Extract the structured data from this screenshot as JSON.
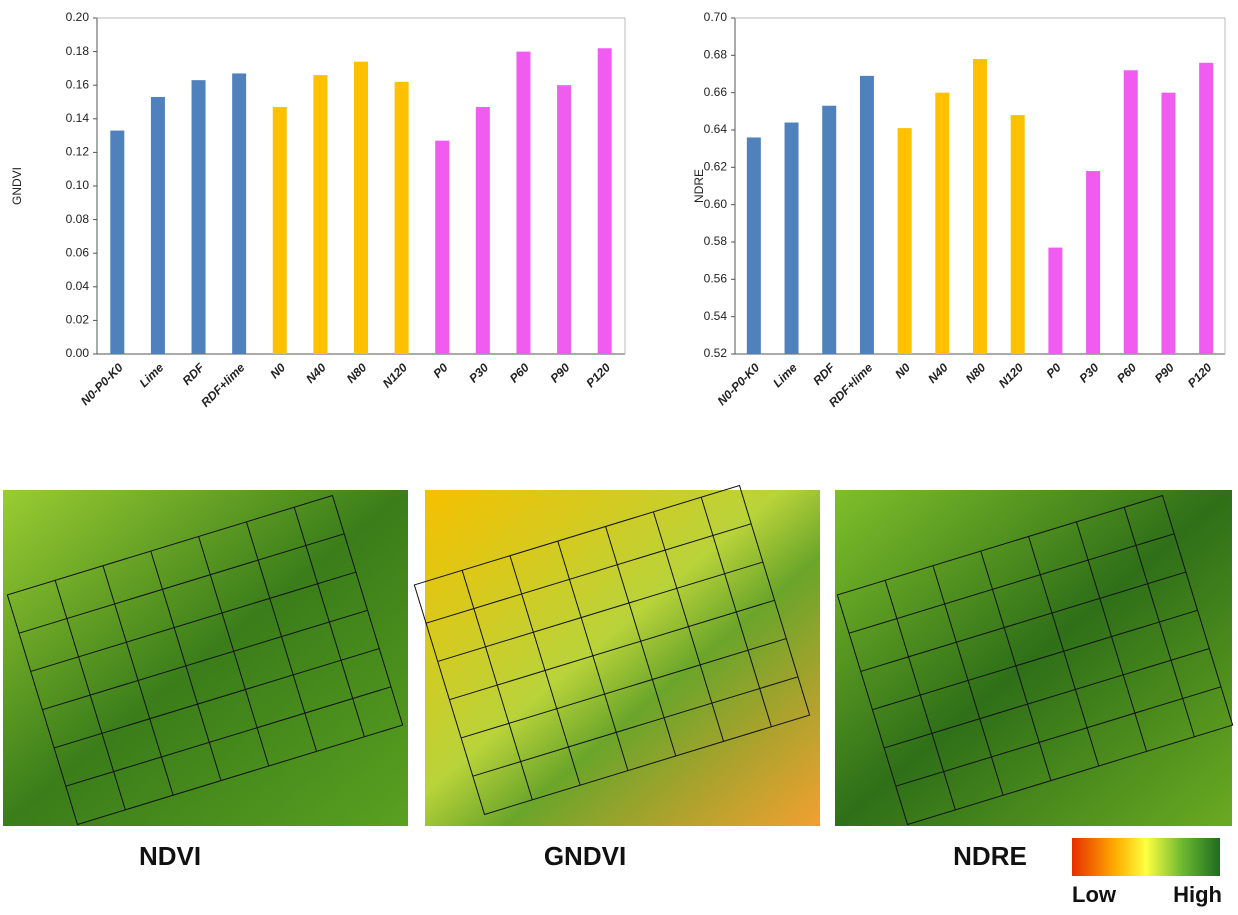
{
  "chart_data": [
    {
      "type": "bar",
      "ylabel": "GNDVI",
      "categories": [
        "N0-P0-K0",
        "Lime",
        "RDF",
        "RDF+lime",
        "N0",
        "N40",
        "N80",
        "N120",
        "P0",
        "P30",
        "P60",
        "P90",
        "P120"
      ],
      "values": [
        0.133,
        0.153,
        0.163,
        0.167,
        0.147,
        0.166,
        0.174,
        0.162,
        0.127,
        0.147,
        0.18,
        0.16,
        0.182
      ],
      "colors": [
        "#4f81bd",
        "#4f81bd",
        "#4f81bd",
        "#4f81bd",
        "#ffc000",
        "#ffc000",
        "#ffc000",
        "#ffc000",
        "#f05cf0",
        "#f05cf0",
        "#f05cf0",
        "#f05cf0",
        "#f05cf0"
      ],
      "ylim": [
        0,
        0.2
      ],
      "yticks": [
        {
          "value": 0,
          "label": "0.00"
        },
        {
          "value": 0.02,
          "label": "0.02"
        },
        {
          "value": 0.04,
          "label": "0.04"
        },
        {
          "value": 0.06,
          "label": "0.06"
        },
        {
          "value": 0.08,
          "label": "0.08"
        },
        {
          "value": 0.1,
          "label": "0.10"
        },
        {
          "value": 0.12,
          "label": "0.12"
        },
        {
          "value": 0.14,
          "label": "0.14"
        },
        {
          "value": 0.16,
          "label": "0.16"
        },
        {
          "value": 0.18,
          "label": "0.18"
        },
        {
          "value": 0.2,
          "label": "0.20"
        }
      ],
      "grid": false
    },
    {
      "type": "bar",
      "ylabel": "NDRE",
      "categories": [
        "N0-P0-K0",
        "Lime",
        "RDF",
        "RDF+lime",
        "N0",
        "N40",
        "N80",
        "N120",
        "P0",
        "P30",
        "P60",
        "P90",
        "P120"
      ],
      "values": [
        0.636,
        0.644,
        0.653,
        0.669,
        0.641,
        0.66,
        0.678,
        0.648,
        0.577,
        0.618,
        0.672,
        0.66,
        0.676
      ],
      "colors": [
        "#4f81bd",
        "#4f81bd",
        "#4f81bd",
        "#4f81bd",
        "#ffc000",
        "#ffc000",
        "#ffc000",
        "#ffc000",
        "#f05cf0",
        "#f05cf0",
        "#f05cf0",
        "#f05cf0",
        "#f05cf0"
      ],
      "ylim": [
        0.52,
        0.7
      ],
      "yticks": [
        {
          "value": 0.52,
          "label": "0.52"
        },
        {
          "value": 0.54,
          "label": "0.54"
        },
        {
          "value": 0.56,
          "label": "0.56"
        },
        {
          "value": 0.58,
          "label": "0.58"
        },
        {
          "value": 0.6,
          "label": "0.60"
        },
        {
          "value": 0.62,
          "label": "0.62"
        },
        {
          "value": 0.64,
          "label": "0.64"
        },
        {
          "value": 0.66,
          "label": "0.66"
        },
        {
          "value": 0.68,
          "label": "0.68"
        },
        {
          "value": 0.7,
          "label": "0.70"
        }
      ],
      "grid": false
    }
  ],
  "panels": [
    {
      "label": "NDVI"
    },
    {
      "label": "GNDVI"
    },
    {
      "label": "NDRE"
    }
  ],
  "colorbar": {
    "low": "Low",
    "high": "High"
  }
}
